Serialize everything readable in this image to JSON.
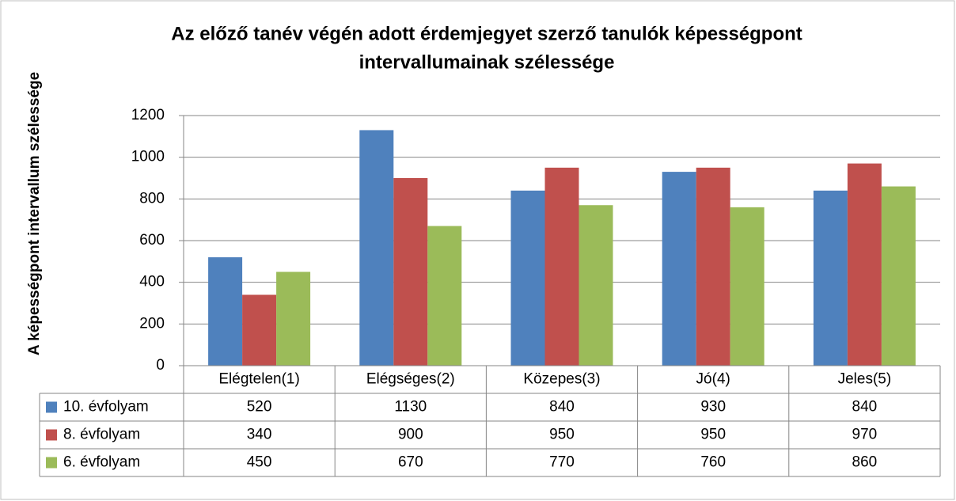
{
  "chart_data": {
    "type": "bar",
    "title": [
      "Az előző tanév végén adott érdemjegyet szerző tanulók képességpont",
      "intervallumainak szélessége"
    ],
    "y_label": "A képességpont intervallum szélessége",
    "categories": [
      "Elégtelen(1)",
      "Elégséges(2)",
      "Közepes(3)",
      "Jó(4)",
      "Jeles(5)"
    ],
    "series": [
      {
        "name": "10. évfolyam",
        "color": "#4f81bd",
        "values": [
          520,
          1130,
          840,
          930,
          840
        ]
      },
      {
        "name": "8. évfolyam",
        "color": "#c0504d",
        "values": [
          340,
          900,
          950,
          950,
          970
        ]
      },
      {
        "name": "6. évfolyam",
        "color": "#9bbb59",
        "values": [
          450,
          670,
          770,
          760,
          860
        ]
      }
    ],
    "ylim": [
      0,
      1200
    ],
    "yticks": [
      0,
      200,
      400,
      600,
      800,
      1000,
      1200
    ],
    "grid": true,
    "data_table": true
  }
}
